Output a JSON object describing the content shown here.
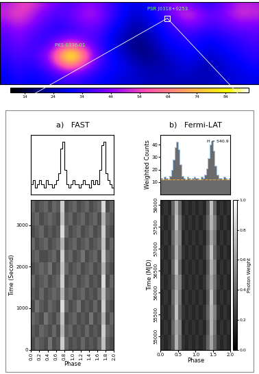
{
  "chart_data": [
    {
      "type": "heatmap",
      "cells": [
        [
          48,
          52,
          55,
          50,
          45,
          40,
          38,
          42,
          45,
          40,
          35,
          30,
          28,
          30,
          35,
          40,
          45,
          42,
          38,
          35,
          40,
          45,
          50,
          48
        ],
        [
          50,
          55,
          52,
          45,
          40,
          38,
          40,
          45,
          48,
          42,
          35,
          30,
          26,
          28,
          32,
          38,
          48,
          52,
          45,
          40,
          42,
          48,
          52,
          50
        ],
        [
          45,
          50,
          48,
          42,
          38,
          35,
          38,
          42,
          44,
          40,
          32,
          28,
          24,
          26,
          30,
          35,
          40,
          45,
          42,
          38,
          40,
          42,
          45,
          44
        ],
        [
          40,
          45,
          42,
          38,
          35,
          34,
          36,
          38,
          40,
          36,
          30,
          26,
          22,
          24,
          28,
          32,
          36,
          38,
          36,
          34,
          36,
          38,
          40,
          40
        ],
        [
          38,
          42,
          40,
          36,
          36,
          40,
          45,
          42,
          38,
          34,
          28,
          24,
          20,
          22,
          26,
          30,
          32,
          34,
          32,
          30,
          32,
          34,
          36,
          38
        ],
        [
          36,
          40,
          38,
          36,
          40,
          52,
          62,
          55,
          42,
          34,
          28,
          24,
          20,
          20,
          24,
          28,
          30,
          32,
          30,
          28,
          30,
          32,
          34,
          36
        ],
        [
          34,
          38,
          36,
          38,
          46,
          68,
          90,
          72,
          48,
          36,
          30,
          26,
          22,
          20,
          22,
          26,
          28,
          30,
          28,
          26,
          28,
          30,
          32,
          34
        ],
        [
          32,
          36,
          34,
          36,
          42,
          58,
          72,
          60,
          44,
          34,
          30,
          28,
          24,
          22,
          22,
          24,
          26,
          28,
          26,
          24,
          26,
          28,
          30,
          32
        ],
        [
          30,
          34,
          32,
          32,
          36,
          42,
          46,
          42,
          36,
          32,
          30,
          28,
          26,
          24,
          24,
          24,
          26,
          26,
          24,
          24,
          26,
          28,
          28,
          30
        ],
        [
          28,
          32,
          30,
          30,
          32,
          34,
          36,
          34,
          32,
          30,
          28,
          26,
          26,
          24,
          24,
          24,
          24,
          24,
          24,
          24,
          26,
          26,
          28,
          28
        ]
      ],
      "clim": [
        9,
        92
      ],
      "cticks": [
        14,
        24,
        34,
        44,
        54,
        64,
        74,
        84
      ],
      "tick_labels": false,
      "annotations": [
        {
          "text": "PKS 0336-01",
          "x": 6,
          "y": 6
        },
        {
          "text": "PSR J0318+0253",
          "x": 15,
          "y": 1.5,
          "marker": "square"
        }
      ]
    },
    {
      "type": "histogram",
      "title": "a)   FAST",
      "color": "#000000",
      "tick_labels": false,
      "bins": [
        0.0,
        0.05,
        0.1,
        0.15,
        0.2,
        0.25,
        0.3,
        0.35,
        0.4,
        0.45,
        0.5,
        0.55,
        0.6,
        0.65,
        0.7,
        0.75,
        0.8,
        0.85,
        0.9,
        0.95,
        1.0,
        1.05,
        1.1,
        1.15,
        1.2,
        1.25,
        1.3,
        1.35,
        1.4,
        1.45,
        1.5,
        1.55,
        1.6,
        1.65,
        1.7,
        1.75,
        1.8,
        1.85,
        1.9,
        1.95,
        2.0
      ],
      "counts": [
        0,
        1,
        -1,
        0,
        1,
        0,
        -1,
        1,
        0,
        0,
        -1,
        0,
        1,
        3,
        10,
        12,
        4,
        0,
        -1,
        0,
        1,
        0,
        0,
        -1,
        0,
        1,
        0,
        0,
        -1,
        1,
        0,
        1,
        0,
        4,
        11,
        12,
        3,
        1,
        0,
        -1
      ],
      "xlim": [
        0.0,
        2.0
      ],
      "ylim": [
        -3,
        14
      ]
    },
    {
      "type": "heatmap",
      "x_label": "Phase",
      "y_label": "Time (Second)",
      "xlim": [
        0.0,
        2.0
      ],
      "ylim": [
        0,
        3600
      ],
      "xticks": [
        0.0,
        0.2,
        0.4,
        0.6,
        0.8,
        1.0,
        1.2,
        1.4,
        1.6,
        1.8,
        2.0
      ],
      "yticks": [
        0,
        1000,
        2000,
        3000
      ],
      "clim": [
        0,
        1
      ],
      "cells": [
        [
          0.3,
          0.4,
          0.35,
          0.3,
          0.45,
          0.3,
          0.35,
          0.8,
          0.4,
          0.3,
          0.35,
          0.3,
          0.4,
          0.3,
          0.35,
          0.3,
          0.4,
          0.75,
          0.35,
          0.3
        ],
        [
          0.35,
          0.3,
          0.4,
          0.35,
          0.3,
          0.4,
          0.3,
          0.7,
          0.35,
          0.4,
          0.3,
          0.35,
          0.3,
          0.4,
          0.3,
          0.35,
          0.3,
          0.8,
          0.4,
          0.35
        ],
        [
          0.4,
          0.35,
          0.3,
          0.45,
          0.35,
          0.3,
          0.4,
          0.75,
          0.3,
          0.35,
          0.4,
          0.3,
          0.35,
          0.3,
          0.45,
          0.3,
          0.35,
          0.7,
          0.3,
          0.4
        ],
        [
          0.3,
          0.45,
          0.35,
          0.3,
          0.4,
          0.35,
          0.3,
          0.85,
          0.4,
          0.3,
          0.35,
          0.45,
          0.3,
          0.35,
          0.3,
          0.4,
          0.3,
          0.8,
          0.35,
          0.3
        ],
        [
          0.35,
          0.3,
          0.4,
          0.3,
          0.35,
          0.4,
          0.35,
          0.7,
          0.35,
          0.4,
          0.3,
          0.35,
          0.4,
          0.3,
          0.35,
          0.3,
          0.4,
          0.75,
          0.4,
          0.35
        ],
        [
          0.4,
          0.3,
          0.35,
          0.4,
          0.3,
          0.35,
          0.4,
          0.8,
          0.3,
          0.35,
          0.4,
          0.3,
          0.35,
          0.4,
          0.3,
          0.35,
          0.3,
          0.85,
          0.3,
          0.4
        ],
        [
          0.3,
          0.35,
          0.4,
          0.35,
          0.45,
          0.3,
          0.35,
          0.75,
          0.4,
          0.3,
          0.35,
          0.4,
          0.3,
          0.35,
          0.4,
          0.3,
          0.35,
          0.7,
          0.35,
          0.3
        ],
        [
          0.35,
          0.4,
          0.3,
          0.3,
          0.35,
          0.4,
          0.3,
          0.8,
          0.35,
          0.4,
          0.3,
          0.35,
          0.45,
          0.3,
          0.35,
          0.4,
          0.3,
          0.8,
          0.4,
          0.35
        ],
        [
          0.4,
          0.3,
          0.35,
          0.4,
          0.3,
          0.35,
          0.4,
          0.7,
          0.3,
          0.35,
          0.4,
          0.3,
          0.35,
          0.4,
          0.3,
          0.35,
          0.4,
          0.75,
          0.3,
          0.4
        ],
        [
          0.3,
          0.35,
          0.4,
          0.3,
          0.35,
          0.3,
          0.35,
          0.85,
          0.4,
          0.3,
          0.35,
          0.4,
          0.3,
          0.35,
          0.4,
          0.3,
          0.35,
          0.8,
          0.35,
          0.3
        ],
        [
          0.35,
          0.4,
          0.3,
          0.35,
          0.4,
          0.35,
          0.3,
          0.75,
          0.35,
          0.4,
          0.3,
          0.35,
          0.4,
          0.3,
          0.35,
          0.4,
          0.3,
          0.7,
          0.4,
          0.35
        ],
        [
          0.4,
          0.3,
          0.35,
          0.4,
          0.3,
          0.4,
          0.35,
          0.8,
          0.3,
          0.35,
          0.4,
          0.3,
          0.35,
          0.4,
          0.3,
          0.35,
          0.4,
          0.85,
          0.3,
          0.4
        ]
      ]
    },
    {
      "type": "histogram",
      "title": "b)   Fermi-LAT",
      "y_label": "Weighted Counts",
      "color": "#6b6b6b",
      "tick_labels": "y",
      "annotation": "H = 540.9",
      "reference_line": {
        "value": 12,
        "color": "#e8a33c",
        "line_style": "dashed"
      },
      "bins": [
        0.0,
        0.05,
        0.1,
        0.15,
        0.2,
        0.25,
        0.3,
        0.35,
        0.4,
        0.45,
        0.5,
        0.55,
        0.6,
        0.65,
        0.7,
        0.75,
        0.8,
        0.85,
        0.9,
        0.95,
        1.0,
        1.05,
        1.1,
        1.15,
        1.2,
        1.25,
        1.3,
        1.35,
        1.4,
        1.45,
        1.5,
        1.55,
        1.6,
        1.65,
        1.7,
        1.75,
        1.8,
        1.85,
        1.9,
        1.95,
        2.0
      ],
      "counts": [
        13,
        12,
        14,
        13,
        12,
        15,
        20,
        28,
        38,
        42,
        36,
        24,
        15,
        13,
        12,
        14,
        13,
        12,
        13,
        14,
        13,
        13,
        12,
        14,
        13,
        16,
        21,
        29,
        40,
        43,
        35,
        23,
        16,
        13,
        13,
        12,
        14,
        13,
        12,
        13
      ],
      "xlim": [
        0.0,
        2.0
      ],
      "ylim": [
        0,
        48
      ],
      "yticks": [
        10,
        20,
        30,
        40
      ]
    },
    {
      "type": "heatmap",
      "x_label": "Phase",
      "y_label": "Time (MJD)",
      "colorbar_label": "Photon Weight",
      "xlim": [
        0.0,
        2.0
      ],
      "ylim": [
        54700,
        58100
      ],
      "xticks": [
        0.0,
        0.5,
        1.0,
        1.5,
        2.0
      ],
      "yticks": [
        55000,
        55500,
        56000,
        56500,
        57000,
        57500,
        58000
      ],
      "clim": [
        0.0,
        1.0
      ],
      "cticks": [
        0.0,
        0.2,
        0.4,
        0.6,
        0.8,
        1.0
      ],
      "cells": [
        [
          0.2,
          0.15,
          0.2,
          0.35,
          0.7,
          0.45,
          0.2,
          0.15,
          0.2,
          0.15,
          0.2,
          0.15,
          0.2,
          0.4,
          0.65,
          0.4,
          0.2,
          0.15,
          0.2,
          0.15
        ],
        [
          0.15,
          0.2,
          0.15,
          0.4,
          0.65,
          0.5,
          0.15,
          0.2,
          0.15,
          0.2,
          0.15,
          0.2,
          0.15,
          0.35,
          0.7,
          0.45,
          0.15,
          0.2,
          0.15,
          0.2
        ],
        [
          0.2,
          0.15,
          0.2,
          0.35,
          0.75,
          0.4,
          0.2,
          0.15,
          0.2,
          0.15,
          0.2,
          0.15,
          0.2,
          0.4,
          0.7,
          0.5,
          0.2,
          0.15,
          0.2,
          0.15
        ],
        [
          0.15,
          0.2,
          0.15,
          0.4,
          0.7,
          0.45,
          0.15,
          0.2,
          0.15,
          0.2,
          0.15,
          0.2,
          0.15,
          0.35,
          0.75,
          0.4,
          0.15,
          0.2,
          0.15,
          0.2
        ],
        [
          0.2,
          0.15,
          0.2,
          0.35,
          0.65,
          0.5,
          0.2,
          0.15,
          0.2,
          0.15,
          0.2,
          0.15,
          0.2,
          0.4,
          0.65,
          0.45,
          0.2,
          0.15,
          0.2,
          0.15
        ],
        [
          0.15,
          0.2,
          0.15,
          0.4,
          0.75,
          0.4,
          0.15,
          0.2,
          0.15,
          0.2,
          0.15,
          0.2,
          0.15,
          0.35,
          0.7,
          0.5,
          0.15,
          0.2,
          0.15,
          0.2
        ],
        [
          0.2,
          0.15,
          0.2,
          0.35,
          0.7,
          0.45,
          0.2,
          0.15,
          0.2,
          0.15,
          0.2,
          0.15,
          0.2,
          0.4,
          0.75,
          0.4,
          0.2,
          0.15,
          0.2,
          0.15
        ],
        [
          0.15,
          0.2,
          0.15,
          0.4,
          0.65,
          0.5,
          0.15,
          0.2,
          0.15,
          0.2,
          0.15,
          0.2,
          0.15,
          0.35,
          0.65,
          0.45,
          0.15,
          0.2,
          0.15,
          0.2
        ],
        [
          0.2,
          0.15,
          0.2,
          0.35,
          0.75,
          0.45,
          0.2,
          0.15,
          0.2,
          0.15,
          0.2,
          0.15,
          0.2,
          0.4,
          0.7,
          0.5,
          0.2,
          0.15,
          0.2,
          0.15
        ],
        [
          0.15,
          0.2,
          0.15,
          0.4,
          0.7,
          0.4,
          0.15,
          0.2,
          0.15,
          0.2,
          0.15,
          0.2,
          0.15,
          0.35,
          0.75,
          0.4,
          0.15,
          0.2,
          0.15,
          0.2
        ]
      ]
    }
  ]
}
